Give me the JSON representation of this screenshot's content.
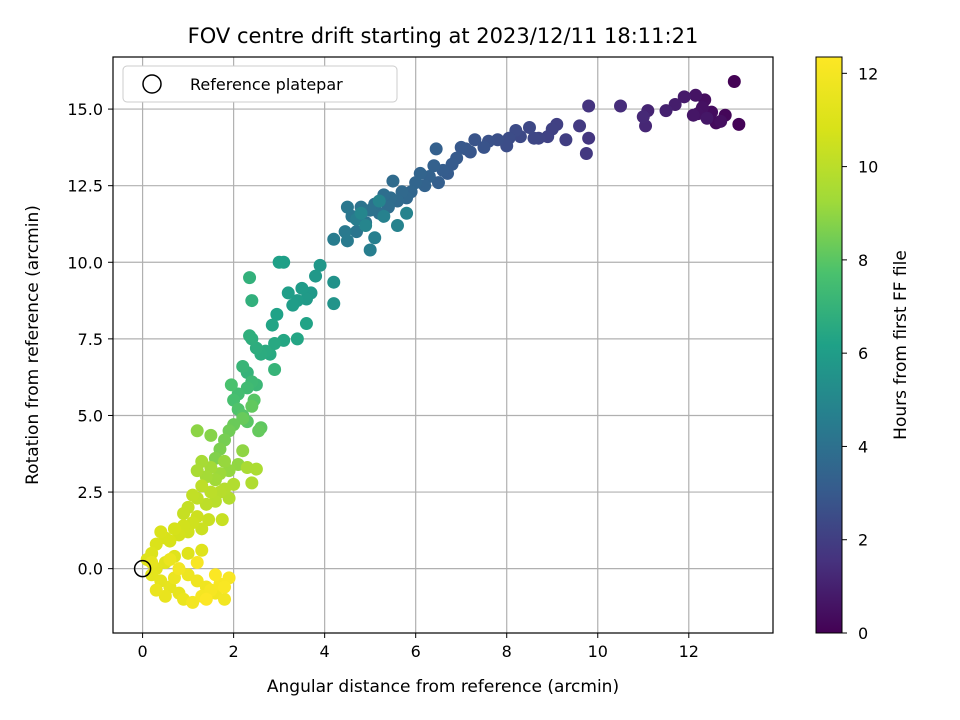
{
  "chart_data": {
    "type": "scatter",
    "title": "FOV centre drift starting at 2023/12/11 18:11:21",
    "xlabel": "Angular distance from reference (arcmin)",
    "ylabel": "Rotation from reference (arcmin)",
    "xlim": [
      -0.65,
      13.85
    ],
    "ylim": [
      -2.1,
      16.7
    ],
    "xticks": [
      0,
      2,
      4,
      6,
      8,
      10,
      12
    ],
    "xtick_labels": [
      "0",
      "2",
      "4",
      "6",
      "8",
      "10",
      "12"
    ],
    "yticks": [
      0.0,
      2.5,
      5.0,
      7.5,
      10.0,
      12.5,
      15.0
    ],
    "ytick_labels": [
      "0.0",
      "2.5",
      "5.0",
      "7.5",
      "10.0",
      "12.5",
      "15.0"
    ],
    "grid": true,
    "legend": {
      "location": "upper-left",
      "entries": [
        "Reference platepar"
      ]
    },
    "reference_point": {
      "x": 0.0,
      "y": 0.0,
      "marker": "open-circle"
    },
    "colorbar": {
      "label": "Hours from first FF file",
      "colormap": "viridis",
      "range": [
        0,
        12.35
      ],
      "ticks": [
        0,
        2,
        4,
        6,
        8,
        10,
        12
      ],
      "tick_labels": [
        "0",
        "2",
        "4",
        "6",
        "8",
        "10",
        "12"
      ]
    },
    "series": [
      {
        "color_by": "hours",
        "points": [
          [
            13.0,
            15.9,
            0.05
          ],
          [
            13.1,
            14.5,
            0.1
          ],
          [
            12.8,
            14.8,
            0.2
          ],
          [
            12.6,
            14.55,
            0.3
          ],
          [
            12.5,
            14.9,
            0.35
          ],
          [
            12.35,
            15.3,
            0.4
          ],
          [
            12.3,
            15.05,
            0.5
          ],
          [
            12.2,
            14.85,
            0.55
          ],
          [
            12.15,
            15.45,
            0.6
          ],
          [
            12.1,
            14.8,
            0.65
          ],
          [
            12.4,
            14.7,
            0.7
          ],
          [
            12.7,
            14.6,
            0.45
          ],
          [
            11.9,
            15.4,
            0.8
          ],
          [
            11.7,
            15.15,
            0.9
          ],
          [
            11.5,
            14.95,
            1.0
          ],
          [
            11.1,
            14.95,
            1.1
          ],
          [
            11.05,
            14.45,
            1.2
          ],
          [
            11.0,
            14.75,
            1.25
          ],
          [
            10.5,
            15.1,
            1.4
          ],
          [
            9.8,
            15.1,
            1.6
          ],
          [
            9.8,
            14.05,
            1.7
          ],
          [
            9.75,
            13.55,
            1.8
          ],
          [
            9.6,
            14.45,
            1.85
          ],
          [
            9.3,
            14.0,
            2.0
          ],
          [
            9.1,
            14.5,
            2.05
          ],
          [
            9.0,
            14.35,
            2.1
          ],
          [
            8.9,
            14.1,
            2.15
          ],
          [
            8.7,
            14.05,
            2.2
          ],
          [
            8.6,
            14.05,
            2.3
          ],
          [
            8.5,
            14.4,
            2.35
          ],
          [
            8.3,
            14.1,
            2.4
          ],
          [
            8.2,
            14.3,
            2.45
          ],
          [
            8.05,
            14.05,
            2.5
          ],
          [
            8.0,
            13.8,
            2.55
          ],
          [
            7.8,
            14.0,
            2.6
          ],
          [
            7.6,
            13.95,
            2.7
          ],
          [
            7.5,
            13.75,
            2.75
          ],
          [
            7.3,
            14.0,
            2.8
          ],
          [
            7.2,
            13.6,
            2.85
          ],
          [
            7.1,
            13.7,
            2.9
          ],
          [
            7.0,
            13.75,
            2.95
          ],
          [
            6.9,
            13.4,
            3.0
          ],
          [
            6.8,
            13.2,
            3.05
          ],
          [
            6.7,
            12.9,
            3.1
          ],
          [
            6.6,
            13.0,
            3.15
          ],
          [
            6.5,
            12.6,
            3.2
          ],
          [
            6.45,
            13.7,
            3.25
          ],
          [
            6.4,
            13.15,
            3.3
          ],
          [
            6.3,
            12.8,
            3.35
          ],
          [
            6.2,
            12.5,
            3.4
          ],
          [
            6.1,
            12.9,
            3.45
          ],
          [
            6.0,
            12.6,
            3.5
          ],
          [
            5.9,
            12.3,
            3.55
          ],
          [
            5.8,
            12.1,
            3.6
          ],
          [
            5.7,
            12.3,
            3.65
          ],
          [
            5.6,
            12.0,
            3.7
          ],
          [
            5.5,
            12.65,
            3.75
          ],
          [
            5.45,
            12.1,
            3.8
          ],
          [
            5.4,
            11.8,
            3.85
          ],
          [
            5.3,
            12.2,
            3.9
          ],
          [
            5.2,
            11.6,
            3.95
          ],
          [
            5.1,
            11.9,
            4.0
          ],
          [
            5.0,
            11.7,
            4.05
          ],
          [
            4.9,
            11.3,
            4.1
          ],
          [
            4.8,
            11.8,
            4.15
          ],
          [
            4.7,
            11.0,
            4.2
          ],
          [
            4.6,
            11.5,
            4.25
          ],
          [
            4.5,
            11.8,
            4.3
          ],
          [
            4.45,
            11.0,
            4.35
          ],
          [
            4.5,
            10.7,
            4.4
          ],
          [
            4.2,
            10.75,
            4.5
          ],
          [
            4.7,
            11.4,
            4.55
          ],
          [
            5.0,
            10.4,
            4.6
          ],
          [
            5.1,
            10.8,
            4.65
          ],
          [
            5.3,
            11.5,
            4.7
          ],
          [
            5.6,
            11.2,
            4.75
          ],
          [
            5.8,
            11.6,
            4.8
          ],
          [
            5.2,
            12.0,
            4.85
          ],
          [
            4.9,
            11.2,
            4.9
          ],
          [
            4.8,
            11.6,
            4.95
          ],
          [
            4.2,
            9.35,
            5.5
          ],
          [
            4.2,
            8.65,
            5.6
          ],
          [
            3.9,
            9.9,
            5.7
          ],
          [
            3.8,
            9.55,
            5.75
          ],
          [
            3.7,
            9.0,
            5.8
          ],
          [
            3.6,
            8.8,
            5.85
          ],
          [
            3.5,
            9.15,
            5.9
          ],
          [
            3.4,
            8.75,
            5.95
          ],
          [
            3.3,
            8.6,
            6.0
          ],
          [
            3.2,
            9.0,
            6.05
          ],
          [
            3.1,
            10.0,
            6.1
          ],
          [
            3.0,
            10.0,
            6.15
          ],
          [
            2.95,
            8.3,
            6.2
          ],
          [
            2.85,
            7.95,
            6.3
          ],
          [
            3.6,
            8.0,
            6.25
          ],
          [
            3.4,
            7.5,
            6.35
          ],
          [
            3.1,
            7.45,
            6.4
          ],
          [
            2.9,
            7.35,
            6.5
          ],
          [
            2.8,
            7.0,
            6.55
          ],
          [
            2.7,
            7.1,
            6.6
          ],
          [
            2.6,
            7.0,
            6.65
          ],
          [
            2.5,
            7.2,
            6.7
          ],
          [
            2.4,
            7.5,
            6.75
          ],
          [
            2.35,
            7.6,
            6.8
          ],
          [
            2.4,
            8.75,
            6.85
          ],
          [
            2.35,
            9.5,
            6.9
          ],
          [
            2.3,
            6.4,
            7.0
          ],
          [
            2.2,
            6.6,
            7.1
          ],
          [
            2.9,
            6.5,
            7.05
          ],
          [
            2.5,
            6.0,
            7.2
          ],
          [
            2.4,
            6.1,
            7.3
          ],
          [
            2.3,
            5.9,
            7.4
          ],
          [
            2.1,
            5.7,
            7.5
          ],
          [
            2.0,
            5.5,
            7.6
          ],
          [
            1.95,
            6.0,
            7.7
          ],
          [
            2.1,
            5.2,
            7.8
          ],
          [
            2.2,
            5.0,
            7.9
          ],
          [
            2.3,
            4.8,
            8.0
          ],
          [
            2.45,
            5.5,
            7.95
          ],
          [
            2.6,
            4.6,
            8.1
          ],
          [
            2.55,
            4.5,
            8.2
          ],
          [
            2.4,
            5.3,
            8.15
          ],
          [
            2.2,
            4.9,
            8.25
          ],
          [
            2.0,
            4.7,
            8.3
          ],
          [
            1.9,
            4.5,
            8.4
          ],
          [
            1.8,
            4.2,
            8.5
          ],
          [
            1.7,
            3.9,
            8.6
          ],
          [
            1.6,
            3.6,
            8.7
          ],
          [
            1.5,
            4.35,
            8.8
          ],
          [
            1.2,
            4.5,
            8.9
          ],
          [
            2.2,
            3.85,
            8.95
          ],
          [
            2.1,
            3.4,
            9.0
          ],
          [
            1.9,
            3.2,
            9.05
          ],
          [
            1.8,
            3.5,
            9.1
          ],
          [
            1.7,
            3.1,
            9.2
          ],
          [
            1.6,
            2.9,
            9.3
          ],
          [
            1.5,
            3.3,
            9.35
          ],
          [
            1.4,
            3.0,
            9.4
          ],
          [
            1.3,
            3.5,
            9.45
          ],
          [
            1.2,
            3.2,
            9.5
          ],
          [
            2.3,
            3.3,
            9.55
          ],
          [
            2.5,
            3.25,
            9.6
          ],
          [
            2.4,
            2.8,
            9.7
          ],
          [
            2.0,
            2.75,
            9.75
          ],
          [
            1.9,
            2.3,
            9.8
          ],
          [
            1.8,
            2.6,
            9.85
          ],
          [
            1.7,
            2.5,
            9.9
          ],
          [
            1.6,
            2.2,
            9.95
          ],
          [
            1.5,
            2.5,
            10.0
          ],
          [
            1.4,
            2.1,
            10.05
          ],
          [
            1.3,
            2.7,
            10.1
          ],
          [
            1.2,
            2.3,
            10.15
          ],
          [
            1.1,
            2.4,
            10.2
          ],
          [
            1.0,
            2.0,
            10.25
          ],
          [
            0.9,
            1.8,
            10.3
          ],
          [
            1.75,
            1.6,
            10.35
          ],
          [
            1.45,
            1.6,
            10.4
          ],
          [
            1.3,
            1.3,
            10.45
          ],
          [
            1.2,
            1.7,
            10.5
          ],
          [
            1.1,
            1.5,
            10.55
          ],
          [
            1.0,
            1.2,
            10.6
          ],
          [
            0.9,
            1.4,
            10.65
          ],
          [
            0.8,
            1.1,
            10.7
          ],
          [
            0.7,
            1.3,
            10.75
          ],
          [
            0.6,
            0.9,
            10.8
          ],
          [
            0.5,
            1.0,
            10.85
          ],
          [
            0.4,
            1.2,
            10.9
          ],
          [
            0.3,
            0.8,
            10.95
          ],
          [
            0.2,
            0.5,
            11.0
          ],
          [
            0.1,
            0.3,
            11.05
          ],
          [
            1.3,
            0.6,
            11.1
          ],
          [
            1.0,
            0.5,
            11.1
          ],
          [
            0.7,
            0.4,
            11.15
          ],
          [
            0.5,
            0.2,
            11.2
          ],
          [
            0.3,
            0.0,
            11.25
          ],
          [
            0.2,
            -0.2,
            11.3
          ],
          [
            0.4,
            -0.4,
            11.35
          ],
          [
            0.6,
            -0.6,
            11.4
          ],
          [
            0.8,
            -0.8,
            11.45
          ],
          [
            0.5,
            -0.9,
            11.5
          ],
          [
            0.3,
            -0.7,
            11.55
          ],
          [
            0.9,
            -1.0,
            11.6
          ],
          [
            0.7,
            -0.3,
            11.65
          ],
          [
            1.0,
            -0.2,
            11.7
          ],
          [
            1.2,
            -0.4,
            11.75
          ],
          [
            1.4,
            -0.6,
            11.8
          ],
          [
            1.6,
            -0.8,
            11.85
          ],
          [
            1.8,
            -1.0,
            11.9
          ],
          [
            1.1,
            -1.1,
            11.95
          ],
          [
            1.3,
            -0.9,
            12.0
          ],
          [
            1.5,
            -0.7,
            12.05
          ],
          [
            1.7,
            -0.5,
            12.1
          ],
          [
            1.9,
            -0.3,
            12.15
          ],
          [
            1.8,
            -0.6,
            12.2
          ],
          [
            1.6,
            -0.2,
            12.25
          ],
          [
            1.4,
            -1.0,
            12.3
          ],
          [
            1.2,
            0.2,
            12.1
          ],
          [
            0.8,
            0.0,
            11.9
          ],
          [
            0.6,
            0.3,
            11.6
          ],
          [
            0.2,
            0.2,
            11.4
          ]
        ]
      }
    ]
  }
}
